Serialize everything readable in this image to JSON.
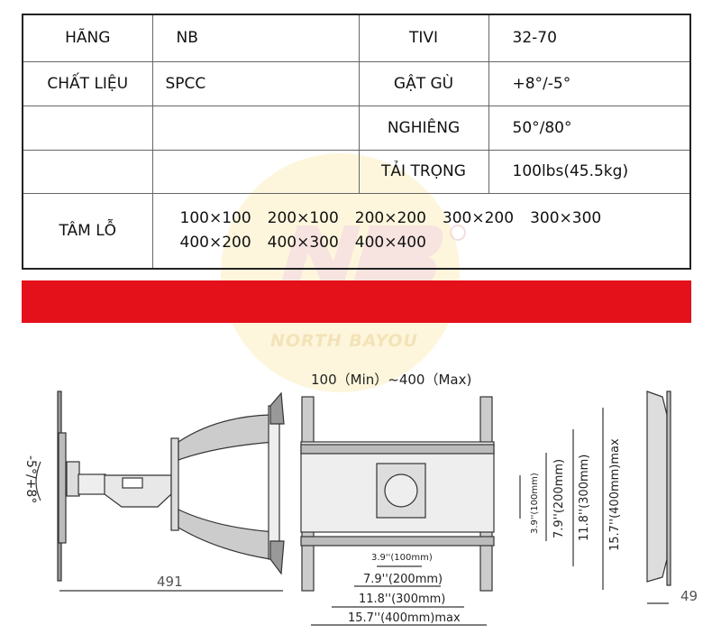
{
  "watermark": {
    "brand": "NB",
    "registered": "®",
    "name": "NORTH BAYOU"
  },
  "specs": {
    "brand_label": "HÃNG",
    "brand_value": "NB",
    "tv_label": "TIVI",
    "tv_value": "32-70",
    "material_label": "CHẤT LIỆU",
    "material_value": "SPCC",
    "tilt_label": "GẬT GÙ",
    "tilt_value": "+8°/-5°",
    "swivel_label": "NGHIÊNG",
    "swivel_value": "50°/80°",
    "load_label": "TẢI TRỌNG",
    "load_value": "100lbs(45.5kg)",
    "vesa_label": "TÂM LỖ",
    "vesa_values": [
      "100×100",
      "200×100",
      "200×200",
      "300×200",
      "300×300",
      "400×200",
      "400×300",
      "400×400"
    ]
  },
  "accent_color": "#e4101a",
  "diagram": {
    "range_title": "100（Min）~400（Max)",
    "tilt": "-5°/+8°",
    "depth": "491",
    "profile_depth": "49",
    "h_dims": [
      "3.9''(100mm)",
      "7.9''(200mm)",
      "11.8''(300mm)",
      "15.7''(400mm)max"
    ],
    "v_dims": [
      "3.9''(100mm)",
      "7.9''(200mm)",
      "11.8''(300mm)",
      "15.7''(400mm)max"
    ]
  }
}
